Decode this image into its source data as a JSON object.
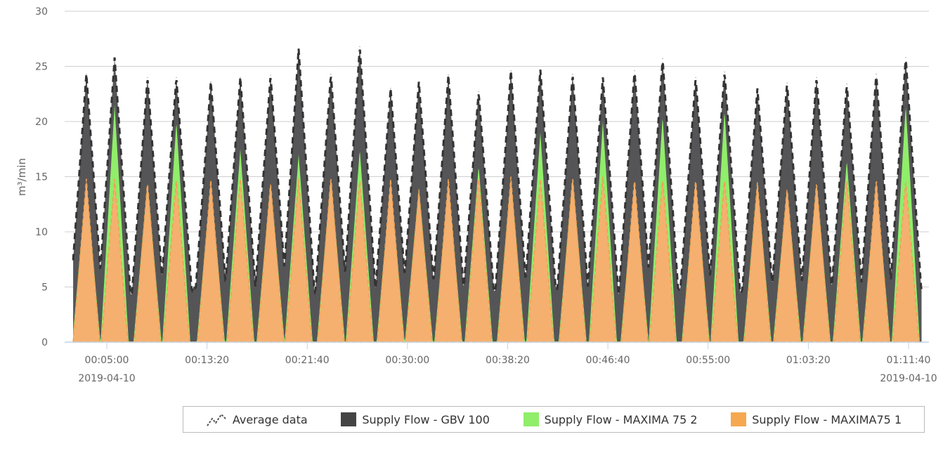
{
  "chart_data": {
    "type": "area",
    "title": "",
    "ylabel": "m³/min",
    "xlabel": "",
    "ylim": [
      0,
      30
    ],
    "yticks": [
      "0",
      "5",
      "10",
      "15",
      "20",
      "25",
      "30"
    ],
    "xlim_seconds": [
      132,
      4366
    ],
    "xticks": [
      {
        "t": 300,
        "label": "00:05:00",
        "date": "2019-04-10"
      },
      {
        "t": 800,
        "label": "00:13:20"
      },
      {
        "t": 1300,
        "label": "00:21:40"
      },
      {
        "t": 1800,
        "label": "00:30:00"
      },
      {
        "t": 2300,
        "label": "00:38:20"
      },
      {
        "t": 2800,
        "label": "00:46:40"
      },
      {
        "t": 3300,
        "label": "00:55:00"
      },
      {
        "t": 3800,
        "label": "01:03:20"
      },
      {
        "t": 4300,
        "label": "01:11:40",
        "date": "2019-04-10"
      }
    ],
    "grid": true,
    "legend_position": "bottom-right",
    "baseline_gbv": 4.7,
    "peaks": {
      "t_seconds": [
        198,
        339,
        503,
        647,
        819,
        966,
        1117,
        1257,
        1418,
        1562,
        1716,
        1857,
        2004,
        2155,
        2316,
        2463,
        2624,
        2775,
        2933,
        3073,
        3238,
        3382,
        3546,
        3694,
        3841,
        3992,
        4139,
        4286
      ],
      "gbv_100": [
        24.3,
        25.8,
        24,
        24,
        23.6,
        24,
        24.2,
        26.6,
        24.3,
        26.8,
        23,
        23.6,
        24.2,
        22.7,
        24.6,
        24.7,
        24.3,
        24,
        24.6,
        25.7,
        24,
        24.5,
        23,
        23.5,
        24,
        23.4,
        24.3,
        25.8
      ],
      "maxima_75_2": [
        14.5,
        21.5,
        14.5,
        20,
        14.5,
        17.5,
        14.5,
        17,
        15,
        17.5,
        14.5,
        14,
        14.5,
        16,
        15,
        19,
        15,
        20,
        14.5,
        20.5,
        14.5,
        21,
        14.5,
        14,
        14.5,
        16.5,
        14.5,
        21.5
      ],
      "maxima75_1": [
        14.8,
        14.8,
        14.5,
        14.8,
        14.7,
        14.8,
        14.5,
        14.8,
        15,
        14.8,
        14.8,
        13.8,
        14.8,
        15,
        15,
        14.8,
        15,
        15,
        14.8,
        14.8,
        14.8,
        14.8,
        14.5,
        14,
        14.5,
        14.8,
        14.8,
        14.7
      ]
    },
    "series": [
      {
        "name": "Average data",
        "color": "#333333"
      },
      {
        "name": "Supply Flow - GBV 100",
        "color": "#555557"
      },
      {
        "name": "Supply Flow - MAXIMA 75 2",
        "color": "#90ee6a"
      },
      {
        "name": "Supply Flow - MAXIMA75 1",
        "color": "#f5ac6a"
      }
    ]
  }
}
